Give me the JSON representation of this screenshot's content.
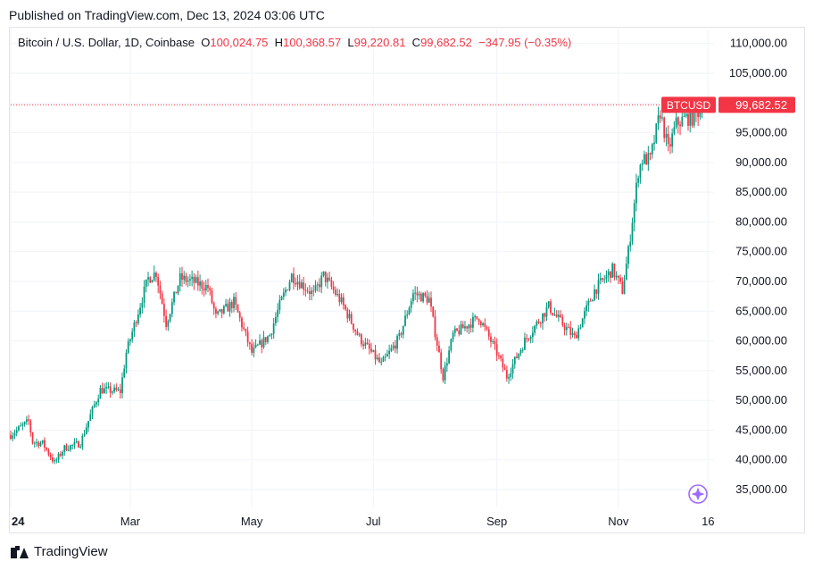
{
  "header": {
    "published": "Published on TradingView.com, Dec 13, 2024 03:06 UTC"
  },
  "legend": {
    "symbol": "Bitcoin / U.S. Dollar, 1D, Coinbase",
    "o_label": "O",
    "o_value": "100,024.75",
    "h_label": "H",
    "h_value": "100,368.57",
    "l_label": "L",
    "l_value": "99,220.81",
    "c_label": "C",
    "c_value": "99,682.52",
    "change": "−347.95 (−0.35%)"
  },
  "footer": {
    "brand": "TradingView"
  },
  "colors": {
    "up": "#089981",
    "down": "#f23645",
    "grid": "#f0f3fa",
    "axis_text": "#131722",
    "accent": "#9c6bff"
  },
  "chart_data": {
    "type": "candlestick",
    "title": "Bitcoin / U.S. Dollar, 1D, Coinbase",
    "symbol_tag": "BTCUSD",
    "last_price": 99682.52,
    "last_price_label": "99,682.52",
    "yticks": [
      "110,000.00",
      "105,000.00",
      "100,000.00",
      "95,000.00",
      "90,000.00",
      "85,000.00",
      "80,000.00",
      "75,000.00",
      "70,000.00",
      "65,000.00",
      "60,000.00",
      "55,000.00",
      "50,000.00",
      "45,000.00",
      "40,000.00",
      "35,000.00"
    ],
    "ytick_values": [
      110000,
      105000,
      100000,
      95000,
      90000,
      85000,
      80000,
      75000,
      70000,
      65000,
      60000,
      55000,
      50000,
      45000,
      40000,
      35000
    ],
    "xticks": [
      "24",
      "Mar",
      "May",
      "Jul",
      "Sep",
      "Nov",
      "16"
    ],
    "xtick_dates": [
      "2024-01-01",
      "2024-03-01",
      "2024-05-01",
      "2024-07-01",
      "2024-09-01",
      "2024-11-01",
      "2024-12-16"
    ],
    "x_start": "2024-01-01",
    "x_end": "2024-12-19",
    "ylim": [
      32000,
      112500
    ],
    "grid": true,
    "anchors": [
      [
        "2024-01-01",
        44200
      ],
      [
        "2024-01-10",
        46500
      ],
      [
        "2024-01-12",
        43000
      ],
      [
        "2024-01-17",
        42800
      ],
      [
        "2024-01-23",
        39500
      ],
      [
        "2024-01-28",
        42000
      ],
      [
        "2024-02-05",
        42800
      ],
      [
        "2024-02-10",
        47500
      ],
      [
        "2024-02-15",
        51800
      ],
      [
        "2024-02-25",
        51500
      ],
      [
        "2024-02-28",
        58000
      ],
      [
        "2024-03-05",
        65000
      ],
      [
        "2024-03-10",
        70500
      ],
      [
        "2024-03-14",
        71500
      ],
      [
        "2024-03-19",
        63000
      ],
      [
        "2024-03-26",
        70500
      ],
      [
        "2024-04-01",
        70000
      ],
      [
        "2024-04-09",
        69000
      ],
      [
        "2024-04-13",
        64000
      ],
      [
        "2024-04-22",
        66500
      ],
      [
        "2024-05-01",
        58000
      ],
      [
        "2024-05-10",
        61000
      ],
      [
        "2024-05-15",
        66000
      ],
      [
        "2024-05-21",
        71000
      ],
      [
        "2024-06-01",
        67800
      ],
      [
        "2024-06-06",
        71000
      ],
      [
        "2024-06-15",
        66500
      ],
      [
        "2024-06-24",
        60500
      ],
      [
        "2024-07-05",
        56000
      ],
      [
        "2024-07-14",
        60500
      ],
      [
        "2024-07-21",
        68000
      ],
      [
        "2024-07-29",
        67000
      ],
      [
        "2024-08-05",
        54000
      ],
      [
        "2024-08-10",
        61000
      ],
      [
        "2024-08-23",
        64000
      ],
      [
        "2024-09-01",
        58000
      ],
      [
        "2024-09-06",
        54000
      ],
      [
        "2024-09-15",
        60000
      ],
      [
        "2024-09-27",
        65800
      ],
      [
        "2024-10-01",
        64000
      ],
      [
        "2024-10-10",
        60500
      ],
      [
        "2024-10-20",
        68500
      ],
      [
        "2024-10-29",
        72000
      ],
      [
        "2024-11-03",
        68500
      ],
      [
        "2024-11-06",
        75000
      ],
      [
        "2024-11-11",
        88500
      ],
      [
        "2024-11-13",
        90500
      ],
      [
        "2024-11-17",
        90500
      ],
      [
        "2024-11-22",
        98500
      ],
      [
        "2024-11-26",
        92000
      ],
      [
        "2024-11-30",
        96500
      ],
      [
        "2024-12-05",
        97500
      ],
      [
        "2024-12-09",
        97500
      ],
      [
        "2024-12-13",
        99682
      ]
    ]
  }
}
